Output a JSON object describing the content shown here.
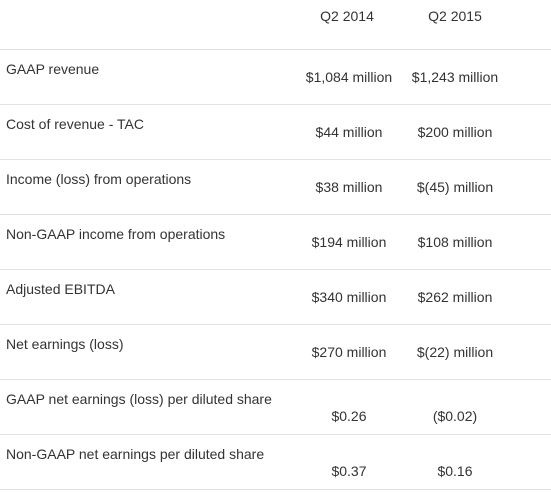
{
  "columns": [
    "Q2 2014",
    "Q2 2015"
  ],
  "rows": [
    {
      "label": "GAAP revenue",
      "q2_2014": "$1,084 million",
      "q2_2015": "$1,243 million"
    },
    {
      "label": "Cost of revenue - TAC",
      "q2_2014": "$44 million",
      "q2_2015": "$200 million"
    },
    {
      "label": "Income (loss) from operations",
      "q2_2014": "$38 million",
      "q2_2015": "$(45) million"
    },
    {
      "label": "Non-GAAP income from operations",
      "q2_2014": "$194 million",
      "q2_2015": "$108 million"
    },
    {
      "label": "Adjusted EBITDA",
      "q2_2014": "$340 million",
      "q2_2015": "$262 million"
    },
    {
      "label": "Net earnings (loss)",
      "q2_2014": "$270 million",
      "q2_2015": "$(22) million"
    },
    {
      "label": "GAAP net earnings (loss) per diluted share",
      "q2_2014": "$0.26",
      "q2_2015": "($0.02)"
    },
    {
      "label": "Non-GAAP net earnings per diluted share",
      "q2_2014": "$0.37",
      "q2_2015": "$0.16"
    }
  ]
}
